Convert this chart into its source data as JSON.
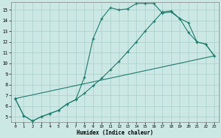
{
  "xlabel": "Humidex (Indice chaleur)",
  "xlim": [
    -0.5,
    23.5
  ],
  "ylim": [
    4.5,
    15.7
  ],
  "xticks": [
    0,
    1,
    2,
    3,
    4,
    5,
    6,
    7,
    8,
    9,
    10,
    11,
    12,
    13,
    14,
    15,
    16,
    17,
    18,
    19,
    20,
    21,
    22,
    23
  ],
  "yticks": [
    5,
    6,
    7,
    8,
    9,
    10,
    11,
    12,
    13,
    14,
    15
  ],
  "bg_color": "#cce8e4",
  "line_color": "#1a7a6e",
  "grid_color": "#b0d4d0",
  "line1_x": [
    0,
    1,
    2,
    3,
    4,
    5,
    6,
    7,
    8,
    9,
    10,
    11,
    12,
    13,
    14,
    15,
    16,
    17,
    18,
    19,
    20,
    21,
    22,
    23
  ],
  "line1_y": [
    6.7,
    5.1,
    4.6,
    5.0,
    5.3,
    5.6,
    6.2,
    6.6,
    8.7,
    12.3,
    14.2,
    15.2,
    15.0,
    15.1,
    15.6,
    15.6,
    15.6,
    14.7,
    14.8,
    14.2,
    12.9,
    12.0,
    11.8,
    10.7
  ],
  "line2_x": [
    0,
    1,
    2,
    3,
    4,
    5,
    6,
    7,
    8,
    9,
    10,
    11,
    12,
    13,
    14,
    15,
    16,
    17,
    18,
    19,
    20,
    21,
    22,
    23
  ],
  "line2_y": [
    6.7,
    5.1,
    4.6,
    5.0,
    5.3,
    5.6,
    6.2,
    6.6,
    7.2,
    7.9,
    8.6,
    9.4,
    10.2,
    11.1,
    12.0,
    13.0,
    13.9,
    14.8,
    14.9,
    14.2,
    13.8,
    12.0,
    11.8,
    10.7
  ],
  "line3_x": [
    0,
    23
  ],
  "line3_y": [
    6.7,
    10.7
  ]
}
